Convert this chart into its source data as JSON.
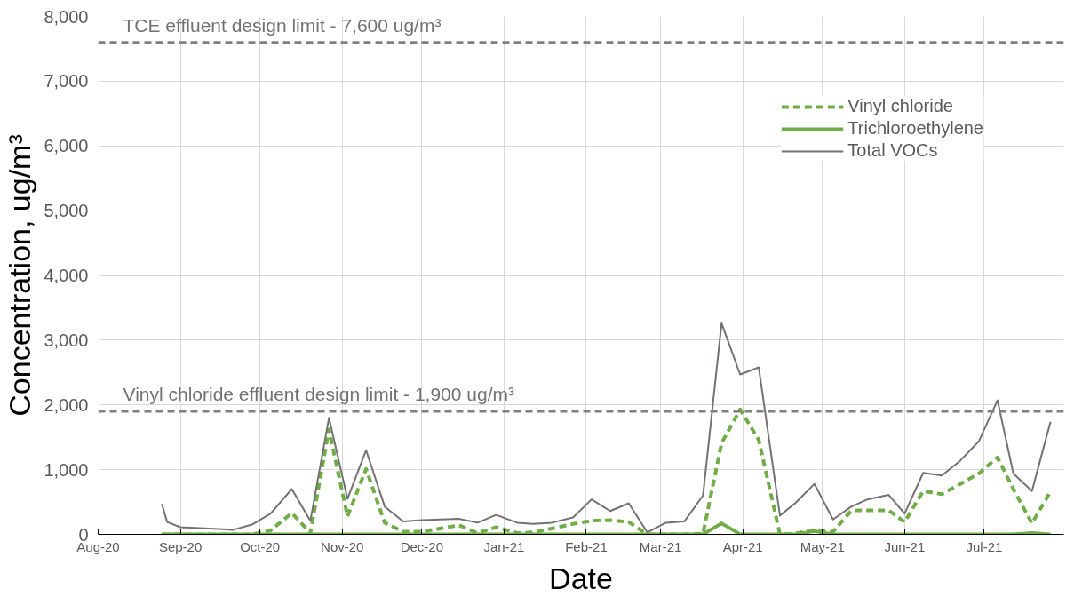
{
  "chart_data": {
    "type": "line",
    "xlabel": "Date",
    "ylabel": "Concentration, ug/m³",
    "x": [
      "2020-08-25",
      "2020-08-27",
      "2020-09-01",
      "2020-09-21",
      "2020-09-28",
      "2020-10-05",
      "2020-10-13",
      "2020-10-20",
      "2020-10-27",
      "2020-11-03",
      "2020-11-10",
      "2020-11-17",
      "2020-11-24",
      "2020-12-01",
      "2020-12-15",
      "2020-12-22",
      "2020-12-29",
      "2021-01-06",
      "2021-01-12",
      "2021-01-19",
      "2021-01-27",
      "2021-02-03",
      "2021-02-10",
      "2021-02-17",
      "2021-02-24",
      "2021-03-03",
      "2021-03-10",
      "2021-03-17",
      "2021-03-24",
      "2021-03-31",
      "2021-04-07",
      "2021-04-15",
      "2021-04-21",
      "2021-04-28",
      "2021-05-05",
      "2021-05-12",
      "2021-05-18",
      "2021-05-26",
      "2021-06-01",
      "2021-06-08",
      "2021-06-15",
      "2021-06-22",
      "2021-06-29",
      "2021-07-06",
      "2021-07-12",
      "2021-07-19",
      "2021-07-26"
    ],
    "series": [
      {
        "name": "Vinyl chloride",
        "color": "#70ad47",
        "line_style": "dashed",
        "values": [
          0,
          0,
          0,
          0,
          0,
          60,
          330,
          20,
          1620,
          280,
          1010,
          180,
          40,
          40,
          140,
          20,
          110,
          20,
          30,
          90,
          160,
          210,
          220,
          190,
          0,
          0,
          0,
          10,
          1410,
          1930,
          1460,
          0,
          15,
          70,
          40,
          370,
          370,
          370,
          190,
          670,
          620,
          780,
          940,
          1190,
          700,
          170,
          660
        ]
      },
      {
        "name": "Trichloroethylene",
        "color": "#70ad47",
        "line_style": "solid",
        "values": [
          0,
          0,
          0,
          0,
          0,
          0,
          0,
          0,
          0,
          0,
          0,
          0,
          0,
          0,
          0,
          0,
          0,
          0,
          0,
          0,
          0,
          0,
          0,
          0,
          0,
          0,
          0,
          0,
          170,
          0,
          0,
          0,
          0,
          50,
          0,
          0,
          0,
          0,
          0,
          0,
          0,
          0,
          0,
          0,
          0,
          20,
          0
        ]
      },
      {
        "name": "Total VOCs",
        "color": "#767171",
        "line_style": "solid",
        "values": [
          470,
          190,
          110,
          70,
          150,
          320,
          700,
          210,
          1800,
          550,
          1300,
          430,
          200,
          220,
          240,
          180,
          300,
          180,
          160,
          180,
          260,
          540,
          360,
          480,
          30,
          180,
          200,
          600,
          3260,
          2470,
          2580,
          290,
          490,
          780,
          230,
          430,
          540,
          610,
          320,
          950,
          910,
          1140,
          1440,
          2070,
          940,
          670,
          1740
        ]
      }
    ],
    "xlim": [
      "2020-08-01",
      "2021-07-31"
    ],
    "xticks": [
      {
        "value": "2020-08-01",
        "label": "Aug-20"
      },
      {
        "value": "2020-09-01",
        "label": "Sep-20"
      },
      {
        "value": "2020-10-01",
        "label": "Oct-20"
      },
      {
        "value": "2020-11-01",
        "label": "Nov-20"
      },
      {
        "value": "2020-12-01",
        "label": "Dec-20"
      },
      {
        "value": "2021-01-01",
        "label": "Jan-21"
      },
      {
        "value": "2021-02-01",
        "label": "Feb-21"
      },
      {
        "value": "2021-03-01",
        "label": "Mar-21"
      },
      {
        "value": "2021-04-01",
        "label": "Apr-21"
      },
      {
        "value": "2021-05-01",
        "label": "May-21"
      },
      {
        "value": "2021-06-01",
        "label": "Jun-21"
      },
      {
        "value": "2021-07-01",
        "label": "Jul-21"
      }
    ],
    "ylim": [
      0,
      8000
    ],
    "yticks": [
      0,
      {
        "value": 1000,
        "label": "1,000"
      },
      {
        "value": 2000,
        "label": "2,000"
      },
      {
        "value": 3000,
        "label": "3,000"
      },
      {
        "value": 4000,
        "label": "4,000"
      },
      {
        "value": 5000,
        "label": "5,000"
      },
      {
        "value": 6000,
        "label": "6,000"
      },
      {
        "value": 7000,
        "label": "7,000"
      },
      {
        "value": 8000,
        "label": "8,000"
      }
    ],
    "ref_lines": [
      {
        "axis": "y",
        "value": 7600,
        "label": "TCE effluent design limit - 7,600 ug/m³",
        "color": "#808080",
        "line_style": "dashed"
      },
      {
        "axis": "y",
        "value": 1900,
        "label": "Vinyl chloride effluent design limit - 1,900 ug/m³",
        "color": "#808080",
        "line_style": "dashed"
      }
    ],
    "grid": true,
    "legend": "top right"
  }
}
